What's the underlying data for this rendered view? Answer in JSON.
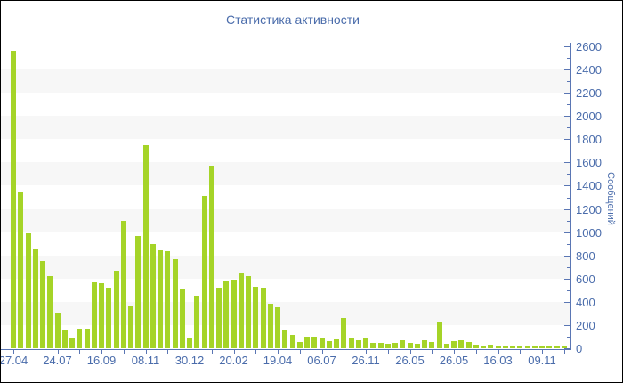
{
  "title": "Статистика активности",
  "chart_data": {
    "type": "bar",
    "title": "Статистика активности",
    "xlabel": "",
    "ylabel": "Сообщений",
    "ylim": [
      0,
      2600
    ],
    "y_major_step": 200,
    "y_minor_step": 100,
    "legend": "none",
    "grid": "alternating horizontal bands of 200 units",
    "x_tick_labels": [
      "27.04",
      "24.07",
      "16.09",
      "08.11",
      "30.12",
      "20.02",
      "19.04",
      "06.07",
      "26.11",
      "26.05",
      "26.05",
      "16.03",
      "09.11"
    ],
    "x_label_every_n_bars": 6,
    "x_minor_tick_every_n_bars": 3,
    "values": [
      2560,
      1350,
      990,
      860,
      750,
      620,
      310,
      160,
      90,
      165,
      165,
      570,
      560,
      525,
      670,
      1100,
      370,
      965,
      1745,
      895,
      845,
      835,
      770,
      515,
      95,
      450,
      1310,
      1570,
      520,
      575,
      590,
      645,
      625,
      530,
      520,
      380,
      350,
      160,
      115,
      55,
      100,
      100,
      95,
      60,
      80,
      260,
      90,
      70,
      85,
      45,
      45,
      35,
      45,
      70,
      45,
      35,
      70,
      55,
      220,
      35,
      65,
      70,
      55,
      30,
      25,
      30,
      20,
      25,
      20,
      15,
      20,
      15,
      20,
      15,
      25,
      20
    ],
    "colors": {
      "bar": "#a5d428",
      "band": "#f7f7f7",
      "axis": "#5a76b4",
      "text": "#4a6cab",
      "background": "#ffffff",
      "frame_border": "#000000"
    }
  }
}
